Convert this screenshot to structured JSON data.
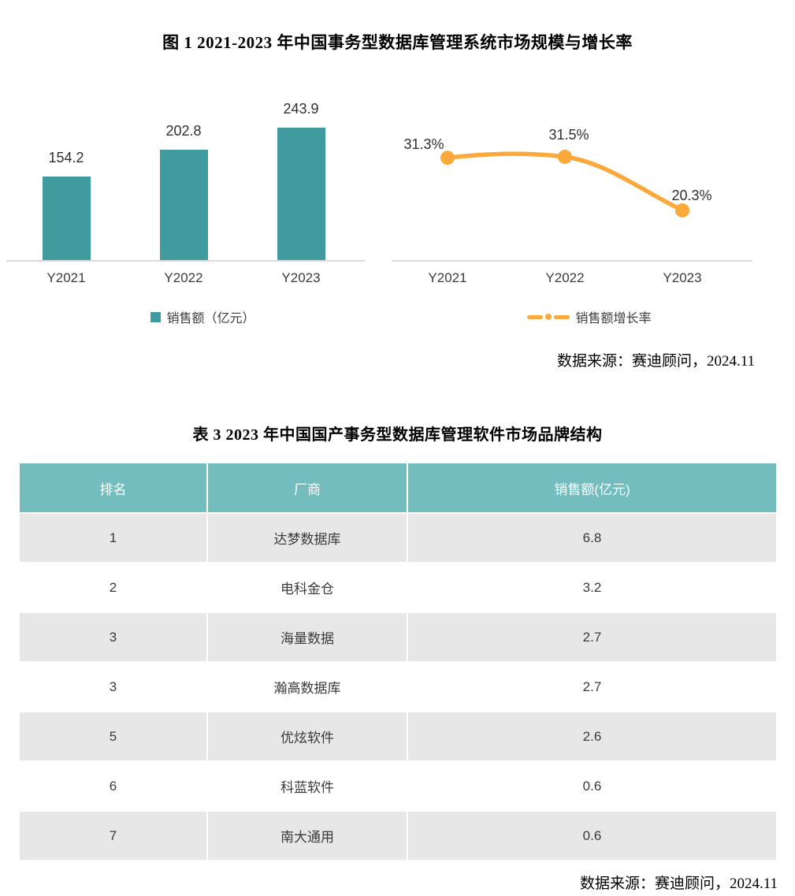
{
  "figure": {
    "title": "图 1  2021-2023 年中国事务型数据库管理系统市场规模与增长率"
  },
  "chart_data": [
    {
      "type": "bar",
      "categories": [
        "Y2021",
        "Y2022",
        "Y2023"
      ],
      "values": [
        154.2,
        202.8,
        243.9
      ],
      "value_labels": [
        "154.2",
        "202.8",
        "243.9"
      ],
      "legend": "销售额（亿元）",
      "title": "",
      "xlabel": "",
      "ylabel": "",
      "ylim": [
        0,
        300
      ],
      "grid": false,
      "legend_position": "bottom",
      "color": "#3F9B9E"
    },
    {
      "type": "line",
      "categories": [
        "Y2021",
        "Y2022",
        "Y2023"
      ],
      "values": [
        31.3,
        31.5,
        20.3
      ],
      "value_labels": [
        "31.3%",
        "31.5%",
        "20.3%"
      ],
      "legend": "销售额增长率",
      "title": "",
      "xlabel": "",
      "ylabel": "",
      "ylim": [
        0,
        40
      ],
      "grid": false,
      "markers": true,
      "legend_position": "bottom",
      "color": "#FAA93A"
    }
  ],
  "source_note_top": "数据来源：赛迪顾问，2024.11",
  "table": {
    "title": "表 3  2023 年中国国产事务型数据库管理软件市场品牌结构",
    "headers": [
      "排名",
      "厂商",
      "销售额(亿元)"
    ],
    "rows": [
      [
        "1",
        "达梦数据库",
        "6.8"
      ],
      [
        "2",
        "电科金仓",
        "3.2"
      ],
      [
        "3",
        "海量数据",
        "2.7"
      ],
      [
        "3",
        "瀚高数据库",
        "2.7"
      ],
      [
        "5",
        "优炫软件",
        "2.6"
      ],
      [
        "6",
        "科蓝软件",
        "0.6"
      ],
      [
        "7",
        "南大通用",
        "0.6"
      ]
    ]
  },
  "source_note_bottom": "数据来源：赛迪顾问，2024.11",
  "colors": {
    "bar": "#3F9B9E",
    "line": "#FAA93A",
    "table_header": "#74BDBF",
    "row_alt": "#E7E7E7",
    "axis": "#DCDCDC"
  }
}
